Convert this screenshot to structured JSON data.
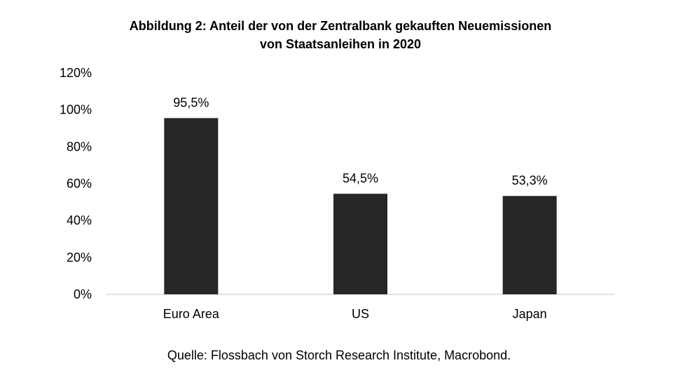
{
  "chart_data": {
    "type": "bar",
    "title_lines": [
      "Abbildung 2: Anteil der von der Zentralbank gekauften Neuemissionen",
      "von Staatsanleihen in 2020"
    ],
    "categories": [
      "Euro Area",
      "US",
      "Japan"
    ],
    "values": [
      95.5,
      54.5,
      53.3
    ],
    "data_labels": [
      "95,5%",
      "54,5%",
      "53,3%"
    ],
    "ylim": [
      0,
      120
    ],
    "yticks": [
      0,
      20,
      40,
      60,
      80,
      100,
      120
    ],
    "ytick_labels": [
      "0%",
      "20%",
      "40%",
      "60%",
      "80%",
      "100%",
      "120%"
    ],
    "grid": false,
    "legend": "none",
    "bar_color": "#262626",
    "axis_color": "#d9d9d9",
    "source": "Quelle: Flossbach von Storch Research Institute, Macrobond."
  }
}
